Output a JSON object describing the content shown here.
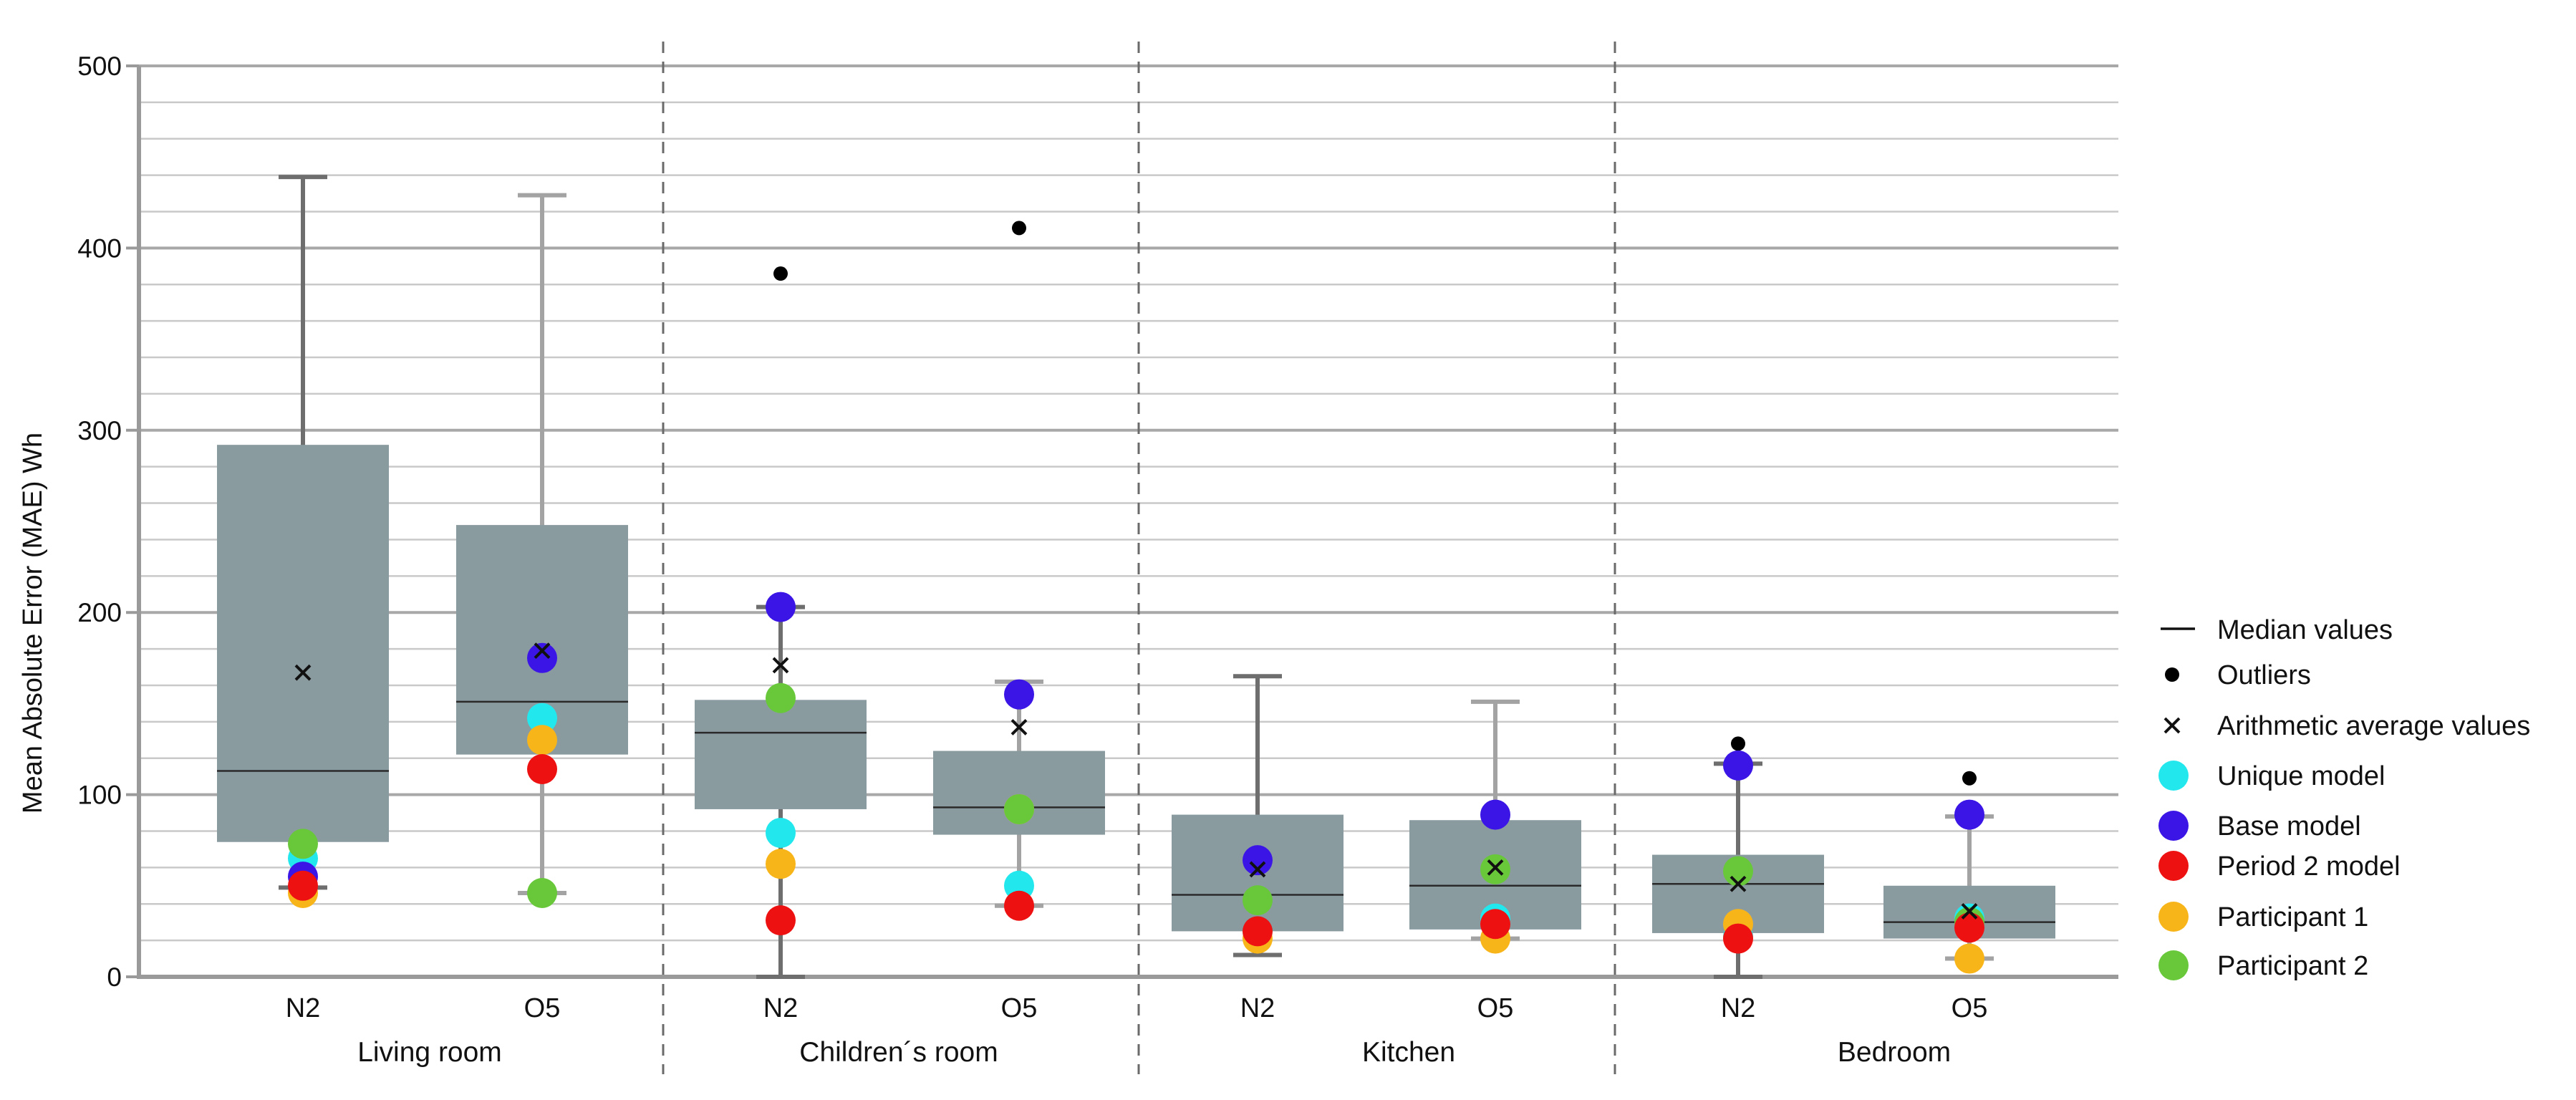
{
  "chart_data": {
    "type": "box",
    "ylabel": "Mean Absolute Error (MAE) Wh",
    "ylim": [
      0,
      500
    ],
    "ymajor_ticks": [
      0,
      100,
      200,
      300,
      400,
      500
    ],
    "yminor_step": 20,
    "groups": [
      {
        "name": "Living room",
        "categories": [
          "N2",
          "O5"
        ]
      },
      {
        "name": "Children´s room",
        "categories": [
          "N2",
          "O5"
        ]
      },
      {
        "name": "Kitchen",
        "categories": [
          "N2",
          "O5"
        ]
      },
      {
        "name": "Bedroom",
        "categories": [
          "N2",
          "O5"
        ]
      }
    ],
    "boxes": [
      {
        "group": "Living room",
        "category": "N2",
        "shade": "dark",
        "whisker_low": 49,
        "q1": 74,
        "median": 113,
        "q3": 292,
        "whisker_high": 439,
        "mean": 167,
        "outliers": [],
        "points": {
          "Unique model": 65,
          "Base model": 55,
          "Period 2 model": 50,
          "Participant 1": 46,
          "Participant 2": 73
        }
      },
      {
        "group": "Living room",
        "category": "O5",
        "shade": "light",
        "whisker_low": 46,
        "q1": 122,
        "median": 151,
        "q3": 248,
        "whisker_high": 429,
        "mean": 179,
        "outliers": [],
        "points": {
          "Unique model": 142,
          "Base model": 175,
          "Period 2 model": 114,
          "Participant 1": 130,
          "Participant 2": 46
        }
      },
      {
        "group": "Children´s room",
        "category": "N2",
        "shade": "dark",
        "whisker_low": 0,
        "q1": 92,
        "median": 134,
        "q3": 152,
        "whisker_high": 203,
        "mean": 171,
        "outliers": [
          386
        ],
        "points": {
          "Unique model": 79,
          "Base model": 203,
          "Period 2 model": 31,
          "Participant 1": 62,
          "Participant 2": 153
        }
      },
      {
        "group": "Children´s room",
        "category": "O5",
        "shade": "light",
        "whisker_low": 39,
        "q1": 78,
        "median": 93,
        "q3": 124,
        "whisker_high": 162,
        "mean": 137,
        "outliers": [
          411
        ],
        "points": {
          "Unique model": 50,
          "Base model": 155,
          "Period 2 model": 39,
          "Participant 1": 92,
          "Participant 2": 92
        }
      },
      {
        "group": "Kitchen",
        "category": "N2",
        "shade": "dark",
        "whisker_low": 12,
        "q1": 25,
        "median": 45,
        "q3": 89,
        "whisker_high": 165,
        "mean": 59,
        "outliers": [],
        "points": {
          "Unique model": 25,
          "Base model": 64,
          "Period 2 model": 25,
          "Participant 1": 21,
          "Participant 2": 42
        }
      },
      {
        "group": "Kitchen",
        "category": "O5",
        "shade": "light",
        "whisker_low": 21,
        "q1": 26,
        "median": 50,
        "q3": 86,
        "whisker_high": 151,
        "mean": 60,
        "outliers": [],
        "points": {
          "Unique model": 32,
          "Base model": 89,
          "Period 2 model": 29,
          "Participant 1": 21,
          "Participant 2": 59
        }
      },
      {
        "group": "Bedroom",
        "category": "N2",
        "shade": "dark",
        "whisker_low": 0,
        "q1": 24,
        "median": 51,
        "q3": 67,
        "whisker_high": 117,
        "mean": 51,
        "outliers": [
          128
        ],
        "points": {
          "Unique model": 22,
          "Base model": 116,
          "Period 2 model": 21,
          "Participant 1": 29,
          "Participant 2": 58
        }
      },
      {
        "group": "Bedroom",
        "category": "O5",
        "shade": "light",
        "whisker_low": 10,
        "q1": 21,
        "median": 30,
        "q3": 50,
        "whisker_high": 88,
        "mean": 36,
        "outliers": [
          109
        ],
        "points": {
          "Unique model": 32,
          "Base model": 89,
          "Period 2 model": 27,
          "Participant 1": 10,
          "Participant 2": 30
        }
      }
    ],
    "point_order": [
      "Unique model",
      "Participant 1",
      "Participant 2",
      "Base model",
      "Period 2 model"
    ],
    "point_colors": {
      "Unique model": "#22e8ee",
      "Base model": "#3b15e6",
      "Period 2 model": "#ee1111",
      "Participant 1": "#f8b51a",
      "Participant 2": "#68c83a"
    },
    "legend": {
      "position": "right",
      "items": [
        {
          "label": "Median values",
          "marker": "line"
        },
        {
          "label": "Outliers",
          "marker": "dot"
        },
        {
          "label": "Arithmetic average values",
          "marker": "cross"
        },
        {
          "label": "Unique model",
          "marker": "circle",
          "series": "Unique model"
        },
        {
          "label": "Base model",
          "marker": "circle",
          "series": "Base model"
        },
        {
          "label": "Period 2 model",
          "marker": "circle",
          "series": "Period 2 model"
        },
        {
          "label": "Participant 1",
          "marker": "circle",
          "series": "Participant 1"
        },
        {
          "label": "Participant 2",
          "marker": "circle",
          "series": "Participant 2"
        }
      ]
    },
    "colors": {
      "box_fill": "#8a9ba0",
      "whisker_dark": "#6e6e6e",
      "whisker_light": "#a3a3a3",
      "grid": "#c9c9c9",
      "axis": "#9a9a9a",
      "median": "#2a2a2a"
    }
  }
}
